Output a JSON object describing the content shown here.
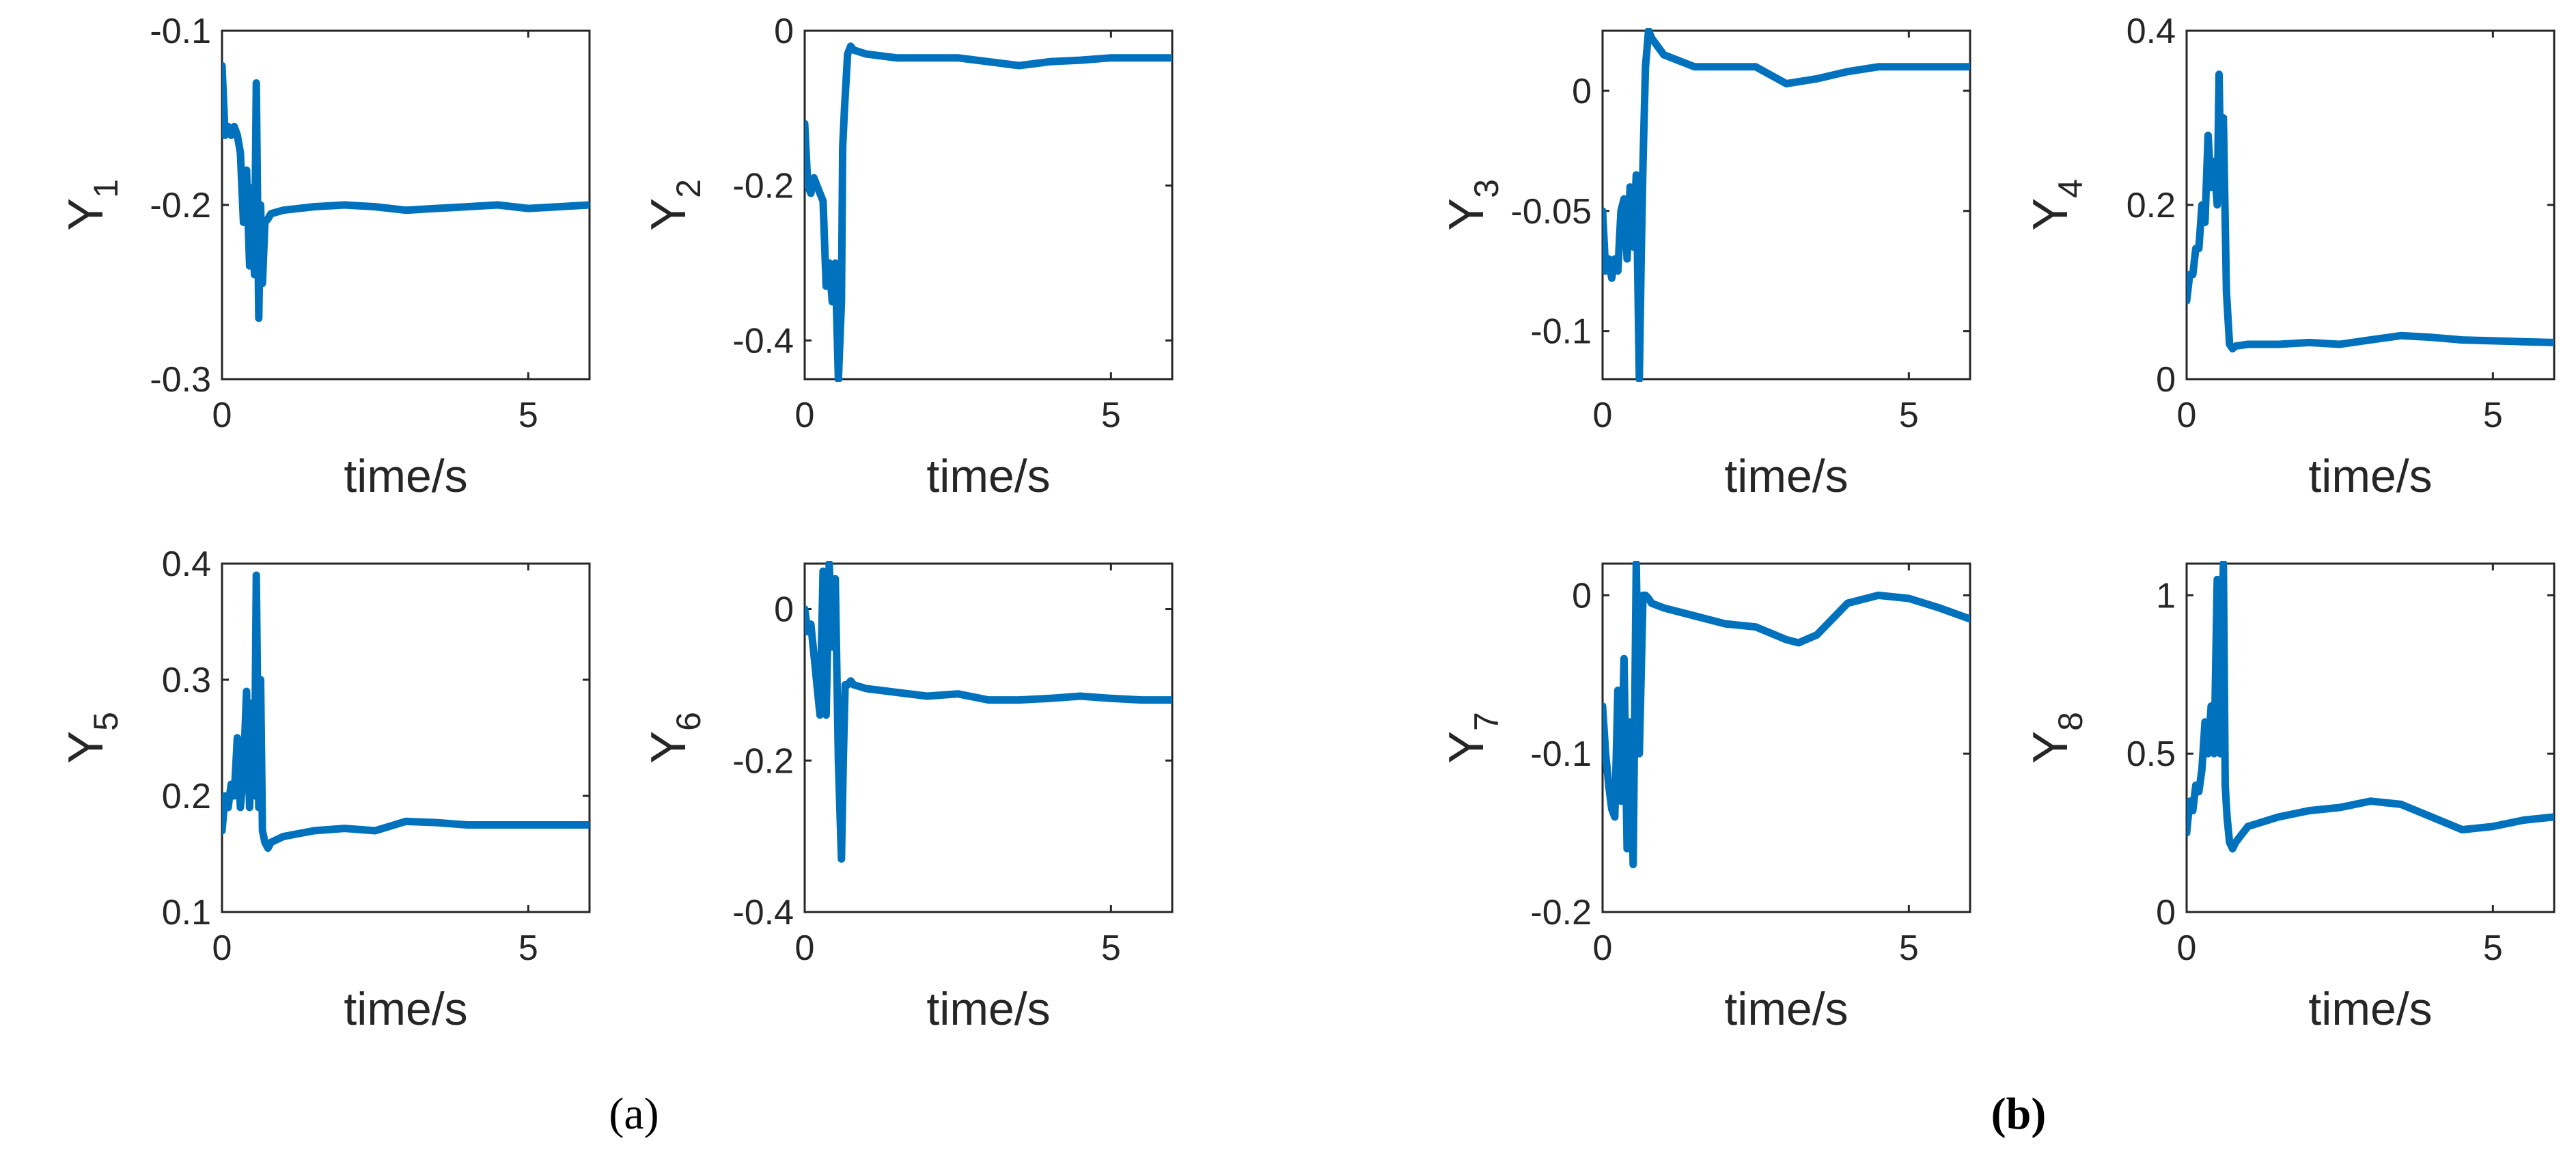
{
  "figure": {
    "panel_labels": [
      "(a)",
      "(b)"
    ],
    "line_color": "#0072BD"
  },
  "chart_data": [
    {
      "type": "line",
      "group": "a",
      "xlabel": "time/s",
      "ylabel": "Y",
      "ylabel_sub": "1",
      "xlim": [
        0,
        6
      ],
      "ylim": [
        -0.3,
        -0.1
      ],
      "xticks": [
        "0",
        "5"
      ],
      "yticks": [
        "-0.3",
        "-0.2",
        "-0.1"
      ],
      "series": [
        {
          "x": [
            0,
            0.05,
            0.1,
            0.15,
            0.2,
            0.25,
            0.3,
            0.35,
            0.4,
            0.45,
            0.5,
            0.53,
            0.56,
            0.6,
            0.63,
            0.66,
            0.7,
            0.75,
            0.8,
            1,
            1.5,
            2,
            2.5,
            3,
            3.5,
            4,
            4.5,
            5,
            5.5,
            6
          ],
          "y": [
            -0.12,
            -0.16,
            -0.155,
            -0.16,
            -0.155,
            -0.16,
            -0.17,
            -0.21,
            -0.18,
            -0.235,
            -0.19,
            -0.24,
            -0.13,
            -0.265,
            -0.2,
            -0.245,
            -0.21,
            -0.208,
            -0.205,
            -0.203,
            -0.201,
            -0.2,
            -0.201,
            -0.203,
            -0.202,
            -0.201,
            -0.2,
            -0.202,
            -0.201,
            -0.2
          ]
        }
      ]
    },
    {
      "type": "line",
      "group": "a",
      "xlabel": "time/s",
      "ylabel": "Y",
      "ylabel_sub": "2",
      "xlim": [
        0,
        6
      ],
      "ylim": [
        -0.45,
        0
      ],
      "xticks": [
        "0",
        "5"
      ],
      "yticks": [
        "-0.4",
        "-0.2",
        "0"
      ],
      "series": [
        {
          "x": [
            0,
            0.05,
            0.1,
            0.15,
            0.2,
            0.3,
            0.35,
            0.4,
            0.45,
            0.5,
            0.55,
            0.6,
            0.62,
            0.65,
            0.7,
            0.75,
            0.8,
            1,
            1.5,
            2,
            2.5,
            3,
            3.5,
            4,
            4.5,
            5,
            5.5,
            6
          ],
          "y": [
            -0.12,
            -0.2,
            -0.21,
            -0.19,
            -0.2,
            -0.22,
            -0.33,
            -0.3,
            -0.35,
            -0.3,
            -0.45,
            -0.35,
            -0.15,
            -0.1,
            -0.03,
            -0.02,
            -0.025,
            -0.03,
            -0.035,
            -0.035,
            -0.035,
            -0.04,
            -0.045,
            -0.04,
            -0.038,
            -0.035,
            -0.035,
            -0.035
          ]
        }
      ]
    },
    {
      "type": "line",
      "group": "a",
      "xlabel": "time/s",
      "ylabel": "Y",
      "ylabel_sub": "3",
      "xlim": [
        0,
        6
      ],
      "ylim": [
        -0.12,
        0.025
      ],
      "xticks": [
        "0",
        "5"
      ],
      "yticks": [
        "-0.1",
        "-0.05",
        "0"
      ],
      "series": [
        {
          "x": [
            0,
            0.05,
            0.1,
            0.15,
            0.2,
            0.25,
            0.3,
            0.35,
            0.4,
            0.45,
            0.5,
            0.55,
            0.6,
            0.63,
            0.66,
            0.7,
            0.75,
            0.8,
            1,
            1.5,
            2,
            2.5,
            3,
            3.5,
            4,
            4.5,
            5,
            5.5,
            6
          ],
          "y": [
            -0.05,
            -0.075,
            -0.07,
            -0.078,
            -0.07,
            -0.075,
            -0.05,
            -0.045,
            -0.07,
            -0.04,
            -0.065,
            -0.035,
            -0.12,
            -0.07,
            -0.03,
            0.01,
            0.025,
            0.022,
            0.015,
            0.01,
            0.01,
            0.01,
            0.003,
            0.005,
            0.008,
            0.01,
            0.01,
            0.01,
            0.01
          ]
        }
      ]
    },
    {
      "type": "line",
      "group": "a",
      "xlabel": "time/s",
      "ylabel": "Y",
      "ylabel_sub": "4",
      "xlim": [
        0,
        6
      ],
      "ylim": [
        0,
        0.4
      ],
      "xticks": [
        "0",
        "5"
      ],
      "yticks": [
        "0",
        "0.2",
        "0.4"
      ],
      "series": [
        {
          "x": [
            0,
            0.05,
            0.1,
            0.15,
            0.2,
            0.25,
            0.3,
            0.35,
            0.4,
            0.45,
            0.5,
            0.53,
            0.56,
            0.6,
            0.65,
            0.7,
            0.75,
            0.8,
            1,
            1.5,
            2,
            2.5,
            3,
            3.5,
            4,
            4.5,
            5,
            5.5,
            6
          ],
          "y": [
            0.09,
            0.12,
            0.12,
            0.15,
            0.15,
            0.2,
            0.18,
            0.28,
            0.22,
            0.25,
            0.2,
            0.35,
            0.22,
            0.3,
            0.1,
            0.04,
            0.035,
            0.038,
            0.04,
            0.04,
            0.042,
            0.04,
            0.045,
            0.05,
            0.048,
            0.045,
            0.044,
            0.043,
            0.042
          ]
        }
      ]
    },
    {
      "type": "line",
      "group": "b",
      "xlabel": "time/s",
      "ylabel": "Y",
      "ylabel_sub": "5",
      "xlim": [
        0,
        6
      ],
      "ylim": [
        0.1,
        0.4
      ],
      "xticks": [
        "0",
        "5"
      ],
      "yticks": [
        "0.1",
        "0.2",
        "0.3",
        "0.4"
      ],
      "series": [
        {
          "x": [
            0,
            0.05,
            0.1,
            0.15,
            0.2,
            0.25,
            0.3,
            0.35,
            0.4,
            0.45,
            0.5,
            0.53,
            0.56,
            0.6,
            0.63,
            0.66,
            0.7,
            0.75,
            0.8,
            1,
            1.5,
            2,
            2.5,
            3,
            3.5,
            4,
            4.5,
            5,
            5.5,
            6
          ],
          "y": [
            0.17,
            0.2,
            0.19,
            0.21,
            0.2,
            0.25,
            0.19,
            0.22,
            0.29,
            0.19,
            0.28,
            0.2,
            0.39,
            0.19,
            0.3,
            0.17,
            0.16,
            0.155,
            0.16,
            0.165,
            0.17,
            0.172,
            0.17,
            0.178,
            0.177,
            0.175,
            0.175,
            0.175,
            0.175,
            0.175
          ]
        }
      ]
    },
    {
      "type": "line",
      "group": "b",
      "xlabel": "time/s",
      "ylabel": "Y",
      "ylabel_sub": "6",
      "xlim": [
        0,
        6
      ],
      "ylim": [
        -0.4,
        0.06
      ],
      "xticks": [
        "0",
        "5"
      ],
      "yticks": [
        "-0.4",
        "-0.2",
        "0"
      ],
      "series": [
        {
          "x": [
            0,
            0.05,
            0.1,
            0.15,
            0.2,
            0.25,
            0.3,
            0.35,
            0.4,
            0.45,
            0.5,
            0.55,
            0.6,
            0.63,
            0.66,
            0.7,
            0.75,
            0.8,
            1,
            1.5,
            2,
            2.5,
            3,
            3.5,
            4,
            4.5,
            5,
            5.5,
            6
          ],
          "y": [
            0,
            -0.03,
            -0.02,
            -0.06,
            -0.1,
            -0.14,
            0.05,
            -0.14,
            0.06,
            -0.05,
            0.04,
            -0.2,
            -0.33,
            -0.2,
            -0.1,
            -0.1,
            -0.095,
            -0.1,
            -0.105,
            -0.11,
            -0.115,
            -0.112,
            -0.12,
            -0.12,
            -0.118,
            -0.115,
            -0.118,
            -0.12,
            -0.12
          ]
        }
      ]
    },
    {
      "type": "line",
      "group": "b",
      "xlabel": "time/s",
      "ylabel": "Y",
      "ylabel_sub": "7",
      "xlim": [
        0,
        6
      ],
      "ylim": [
        -0.2,
        0.02
      ],
      "xticks": [
        "0",
        "5"
      ],
      "yticks": [
        "-0.2",
        "-0.1",
        "0"
      ],
      "series": [
        {
          "x": [
            0,
            0.05,
            0.1,
            0.15,
            0.2,
            0.25,
            0.3,
            0.35,
            0.4,
            0.45,
            0.5,
            0.55,
            0.6,
            0.63,
            0.66,
            0.7,
            0.75,
            0.8,
            1,
            1.5,
            2,
            2.5,
            3,
            3.2,
            3.5,
            4,
            4.5,
            5,
            5.5,
            6
          ],
          "y": [
            -0.07,
            -0.1,
            -0.12,
            -0.135,
            -0.14,
            -0.06,
            -0.13,
            -0.04,
            -0.16,
            -0.08,
            -0.17,
            0.02,
            -0.1,
            -0.05,
            0,
            0,
            -0.002,
            -0.005,
            -0.008,
            -0.013,
            -0.018,
            -0.02,
            -0.028,
            -0.03,
            -0.025,
            -0.005,
            0,
            -0.002,
            -0.008,
            -0.015
          ]
        }
      ]
    },
    {
      "type": "line",
      "group": "b",
      "xlabel": "time/s",
      "ylabel": "Y",
      "ylabel_sub": "8",
      "xlim": [
        0,
        6
      ],
      "ylim": [
        0,
        1.1
      ],
      "xticks": [
        "0",
        "5"
      ],
      "yticks": [
        "0",
        "0.5",
        "1"
      ],
      "series": [
        {
          "x": [
            0,
            0.05,
            0.1,
            0.15,
            0.2,
            0.25,
            0.3,
            0.35,
            0.4,
            0.45,
            0.5,
            0.55,
            0.6,
            0.63,
            0.66,
            0.7,
            0.75,
            0.8,
            1,
            1.5,
            2,
            2.5,
            3,
            3.5,
            4,
            4.5,
            5,
            5.5,
            6
          ],
          "y": [
            0.25,
            0.35,
            0.32,
            0.4,
            0.38,
            0.45,
            0.6,
            0.5,
            0.65,
            0.5,
            1.05,
            0.5,
            1.1,
            0.4,
            0.3,
            0.22,
            0.2,
            0.22,
            0.27,
            0.3,
            0.32,
            0.33,
            0.35,
            0.34,
            0.3,
            0.26,
            0.27,
            0.29,
            0.3
          ]
        }
      ]
    }
  ]
}
